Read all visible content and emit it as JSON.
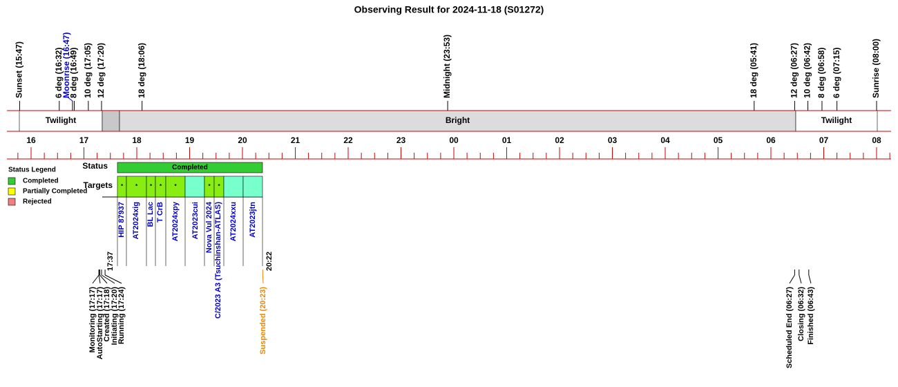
{
  "title": "Observing Result for 2024-11-18 (S01272)",
  "top_events": [
    {
      "label": "Sunset (15:47)",
      "color": "#000000"
    },
    {
      "label": "6 deg (16:32)",
      "color": "#000000"
    },
    {
      "label": "Moonrise (16:47)",
      "color": "#0000cc"
    },
    {
      "label": "8 deg (16:49)",
      "color": "#000000"
    },
    {
      "label": "10 deg (17:05)",
      "color": "#000000"
    },
    {
      "label": "12 deg (17:20)",
      "color": "#000000"
    },
    {
      "label": "18 deg (18:06)",
      "color": "#000000"
    },
    {
      "label": "Midnight (23:53)",
      "color": "#000000"
    },
    {
      "label": "18 deg (05:41)",
      "color": "#000000"
    },
    {
      "label": "12 deg (06:27)",
      "color": "#000000"
    },
    {
      "label": "10 deg (06:42)",
      "color": "#000000"
    },
    {
      "label": "8 deg (06:58)",
      "color": "#000000"
    },
    {
      "label": "6 deg (07:15)",
      "color": "#000000"
    },
    {
      "label": "Sunrise (08:00)",
      "color": "#000000"
    }
  ],
  "bands": [
    "Twilight",
    "Bright",
    "Twilight"
  ],
  "hours": [
    "16",
    "17",
    "18",
    "19",
    "20",
    "21",
    "22",
    "23",
    "00",
    "01",
    "02",
    "03",
    "04",
    "05",
    "06",
    "07",
    "08"
  ],
  "legend": {
    "title": "Status Legend",
    "items": [
      {
        "label": "Completed",
        "color": "#33cc33"
      },
      {
        "label": "Partially Completed",
        "color": "#ffff00"
      },
      {
        "label": "Rejected",
        "color": "#f08080"
      }
    ]
  },
  "status": {
    "label": "Status",
    "value": "Completed",
    "color": "#33cc33"
  },
  "targets": {
    "label": "Targets",
    "cells": [
      {
        "name": "HIP 87937",
        "mark": "*",
        "color": "#88ee11"
      },
      {
        "name": "AT2024xig",
        "mark": "*",
        "color": "#88ee11"
      },
      {
        "name": "BL Lac",
        "mark": "*",
        "color": "#88ee11"
      },
      {
        "name": "T CrB",
        "mark": "*",
        "color": "#88ee11"
      },
      {
        "name": "AT2024xpy",
        "mark": "*",
        "color": "#88ee11"
      },
      {
        "name": "AT2023cui",
        "color": "#77ffcc"
      },
      {
        "name": "Nova Vul 2024",
        "mark": "*",
        "color": "#88ee11"
      },
      {
        "name": "C/2023 A3 (Tsuchinshan-ATLAS)",
        "mark": "*",
        "color": "#88ee11"
      },
      {
        "name": "AT2024xxu",
        "color": "#77ffcc"
      },
      {
        "name": "AT2023jtn",
        "color": "#77ffcc"
      }
    ]
  },
  "start": "17:37",
  "end": "20:22",
  "bottom_events": [
    {
      "label": "Monitoring (17:17)",
      "color": "#000000"
    },
    {
      "label": "AutoStarting (17:17)",
      "color": "#000000"
    },
    {
      "label": "Created (17:18)",
      "color": "#000000"
    },
    {
      "label": "Initiating (17:20)",
      "color": "#000000"
    },
    {
      "label": "Running (17:24)",
      "color": "#000000"
    },
    {
      "label": "Suspended (20:23)",
      "color": "#ee8800"
    },
    {
      "label": "Scheduled End (06:27)",
      "color": "#000000"
    },
    {
      "label": "Closing (06:32)",
      "color": "#000000"
    },
    {
      "label": "Finished (06:43)",
      "color": "#000000"
    }
  ]
}
